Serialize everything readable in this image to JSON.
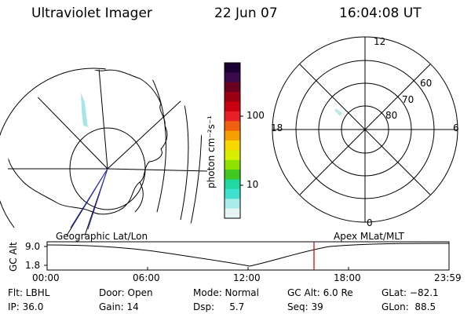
{
  "header": {
    "title": "Ultraviolet Imager",
    "date": "22 Jun 07",
    "time": "16:04:08 UT"
  },
  "colorbar": {
    "unit_label": "photon cm⁻²s⁻¹",
    "ticks": [
      "100",
      "10"
    ],
    "colors": [
      "#1a0033",
      "#3a0a4a",
      "#6a0020",
      "#9a0010",
      "#c80010",
      "#e8202a",
      "#f06010",
      "#f5a000",
      "#f8d800",
      "#d8f000",
      "#90e000",
      "#40c820",
      "#20d8a0",
      "#40e0d0",
      "#a8ecec",
      "#e6f4f4"
    ]
  },
  "polar_plot": {
    "mlt_labels": {
      "top": "12",
      "left": "18",
      "right": "6",
      "bottom": "0"
    },
    "lat_labels": [
      "60",
      "70",
      "80"
    ]
  },
  "altitude_strip": {
    "ylabel": "GC Alt",
    "ymax_label": "9.0",
    "ymin_label": "1.8",
    "left_label": "Geographic Lat/Lon",
    "right_label": "Apex MLat/MLT",
    "time_ticks": [
      "00:00",
      "06:00",
      "12:00",
      "18:00",
      "23:59"
    ],
    "marker_color": "#c00000"
  },
  "info": {
    "flt": "Flt: LBHL",
    "ip": "IP: 36.0",
    "door": "Door: Open",
    "gain": "Gain: 14",
    "mode": "Mode: Normal",
    "dsp": "Dsp:     5.7",
    "gc_alt": "GC Alt: 6.0 Re",
    "seq": "Seq: 39",
    "glat": "GLat: −82.1",
    "glon": "GLon:  88.5"
  }
}
